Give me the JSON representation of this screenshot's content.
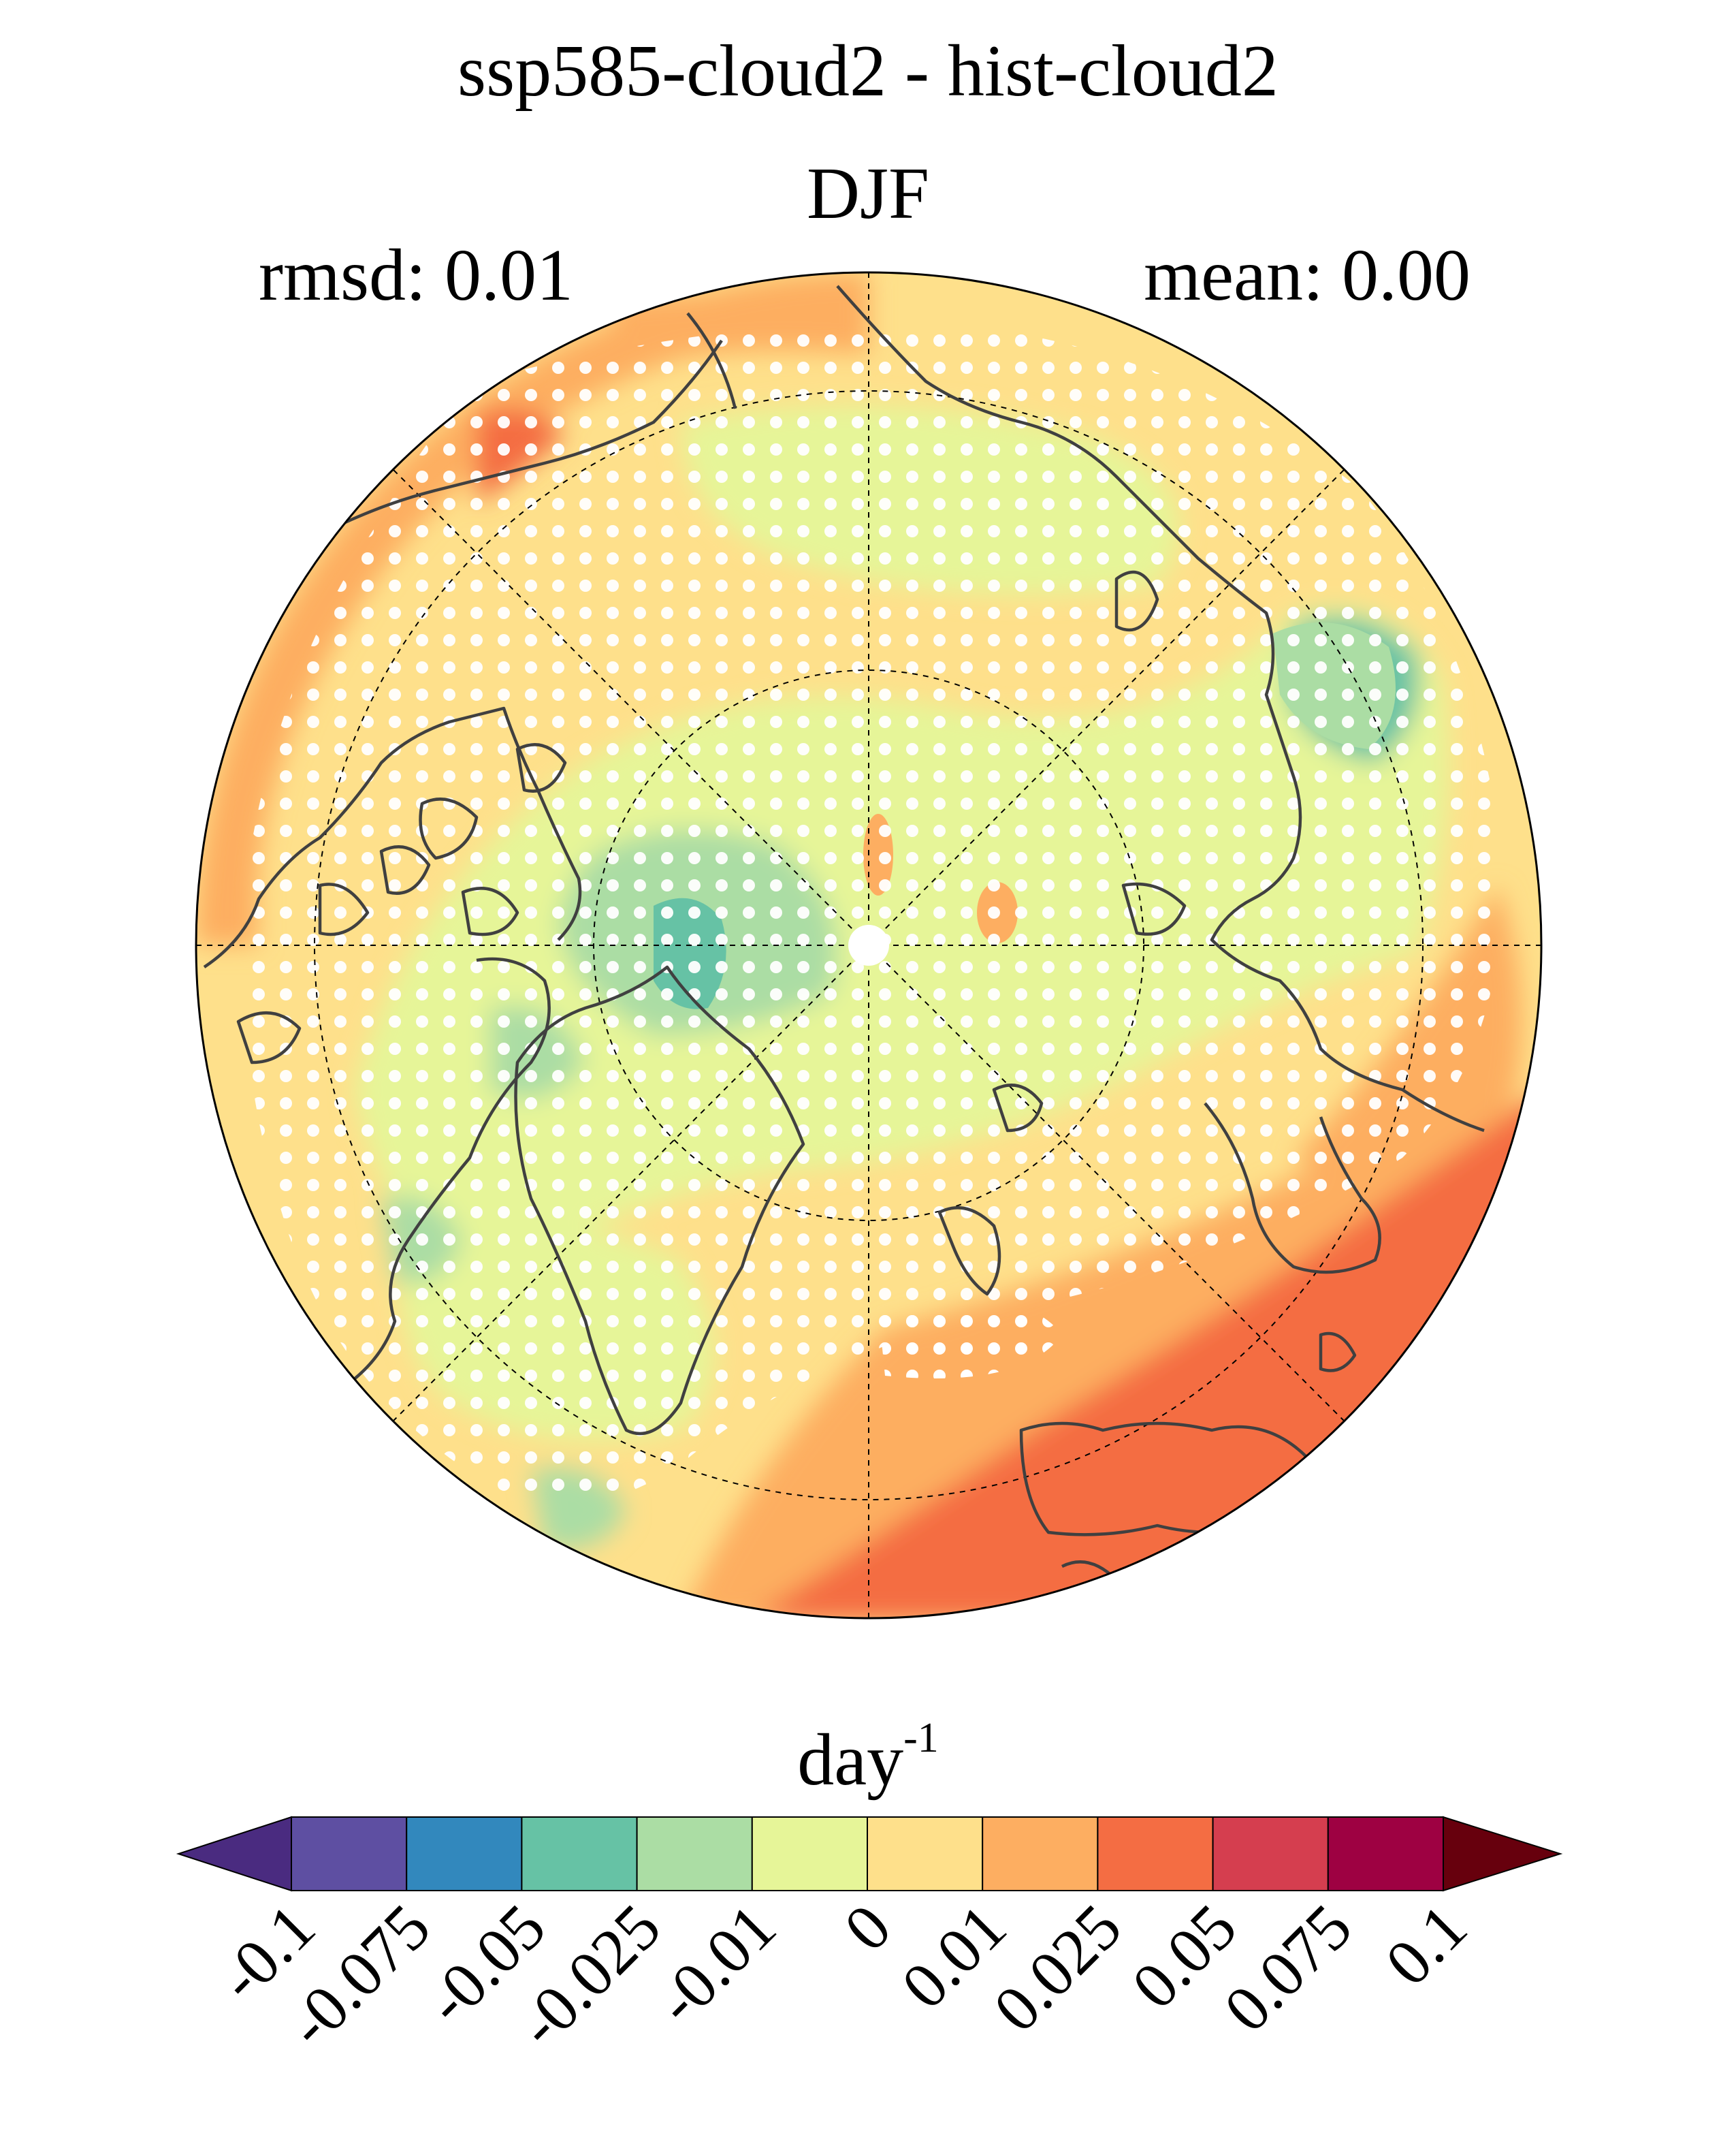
{
  "title": "ssp585-cloud2 - hist-cloud2",
  "season": "DJF",
  "rmsd_label": "rmsd: 0.01",
  "mean_label": "mean: 0.00",
  "units_base": "day",
  "units_exp": "-1",
  "colorbar": {
    "ticks": [
      "-0.1",
      "-0.075",
      "-0.05",
      "-0.025",
      "-0.01",
      "0",
      "0.01",
      "0.025",
      "0.05",
      "0.075",
      "0.1"
    ],
    "colors": [
      "#4a2b80",
      "#5e4fa2",
      "#3288bd",
      "#66c2a5",
      "#abdda4",
      "#e6f598",
      "#fee08b",
      "#fdae61",
      "#f46d43",
      "#d53e4f",
      "#9e0142",
      "#67000d"
    ]
  },
  "map": {
    "projection": "north-polar-stereographic",
    "stippling": "white dots mark significant regions"
  }
}
